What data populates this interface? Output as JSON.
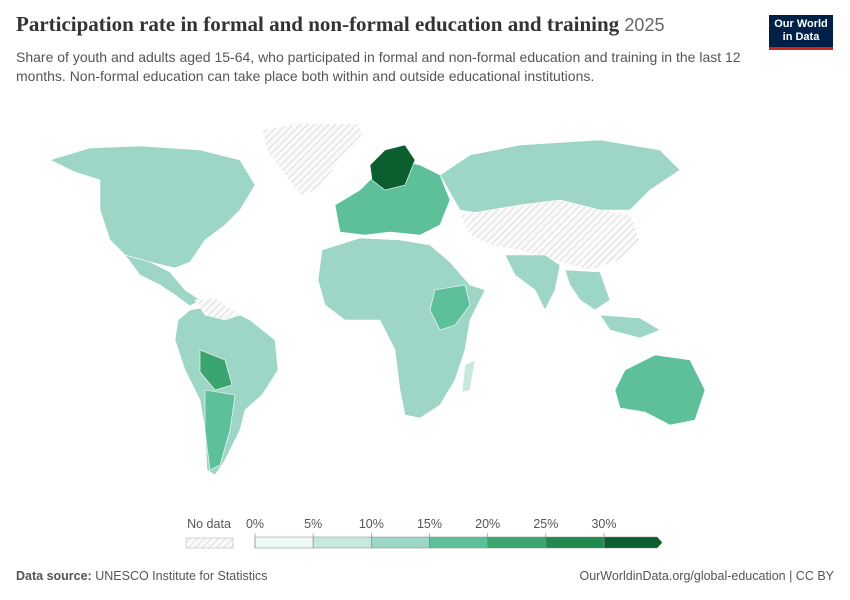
{
  "header": {
    "title": "Participation rate in formal and non-formal education and training",
    "year": "2025",
    "subtitle": "Share of youth and adults aged 15-64, who participated in formal and non-formal education and training in the last 12 months. Non-formal education can take place both within and outside educational institutions."
  },
  "logo": {
    "line1": "Our World",
    "line2": "in Data"
  },
  "legend": {
    "no_data": "No data",
    "ticks": [
      {
        "value": 0,
        "label": "0%"
      },
      {
        "value": 5,
        "label": "5%"
      },
      {
        "value": 10,
        "label": "10%"
      },
      {
        "value": 15,
        "label": "15%"
      },
      {
        "value": 20,
        "label": "20%"
      },
      {
        "value": 25,
        "label": "25%"
      },
      {
        "value": 30,
        "label": "30%"
      }
    ],
    "colors": [
      "#eef8f5",
      "#c6e8df",
      "#9dd6c6",
      "#5ebf9b",
      "#3ba56f",
      "#1f8a4c",
      "#0b5e2e"
    ]
  },
  "footer": {
    "source_label": "Data source:",
    "source": "UNESCO Institute for Statistics",
    "url": "OurWorldinData.org/global-education | CC BY"
  }
}
